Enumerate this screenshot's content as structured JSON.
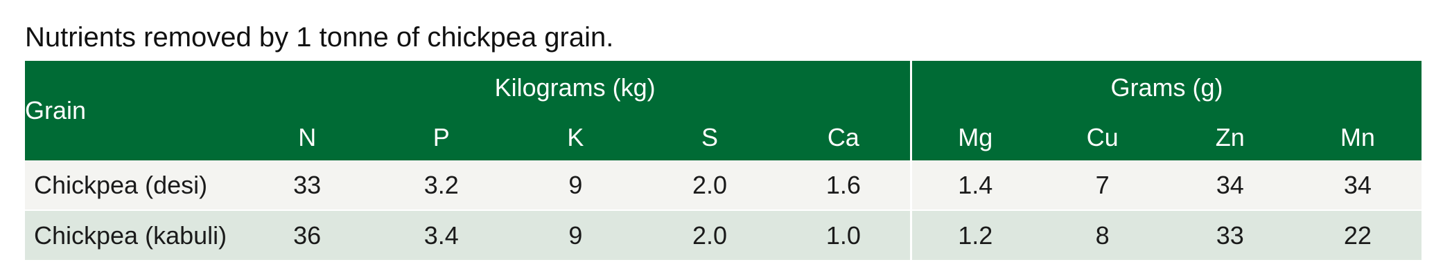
{
  "caption": "Nutrients removed by 1 tonne of chickpea grain.",
  "table": {
    "grain_header": "Grain",
    "group_headers": {
      "kilograms": "Kilograms (kg)",
      "grams": "Grams (g)"
    },
    "element_headers": [
      "N",
      "P",
      "K",
      "S",
      "Ca",
      "Mg",
      "Cu",
      "Zn",
      "Mn"
    ],
    "rows": [
      {
        "grain": "Chickpea (desi)",
        "values": [
          "33",
          "3.2",
          "9",
          "2.0",
          "1.6",
          "1.4",
          "7",
          "34",
          "34"
        ]
      },
      {
        "grain": "Chickpea (kabuli)",
        "values": [
          "36",
          "3.4",
          "9",
          "2.0",
          "1.0",
          "1.2",
          "8",
          "33",
          "22"
        ]
      }
    ]
  },
  "colors": {
    "header_green": "#006b35",
    "row_desi": "#f4f4f1",
    "row_kabuli": "#dde7df"
  }
}
